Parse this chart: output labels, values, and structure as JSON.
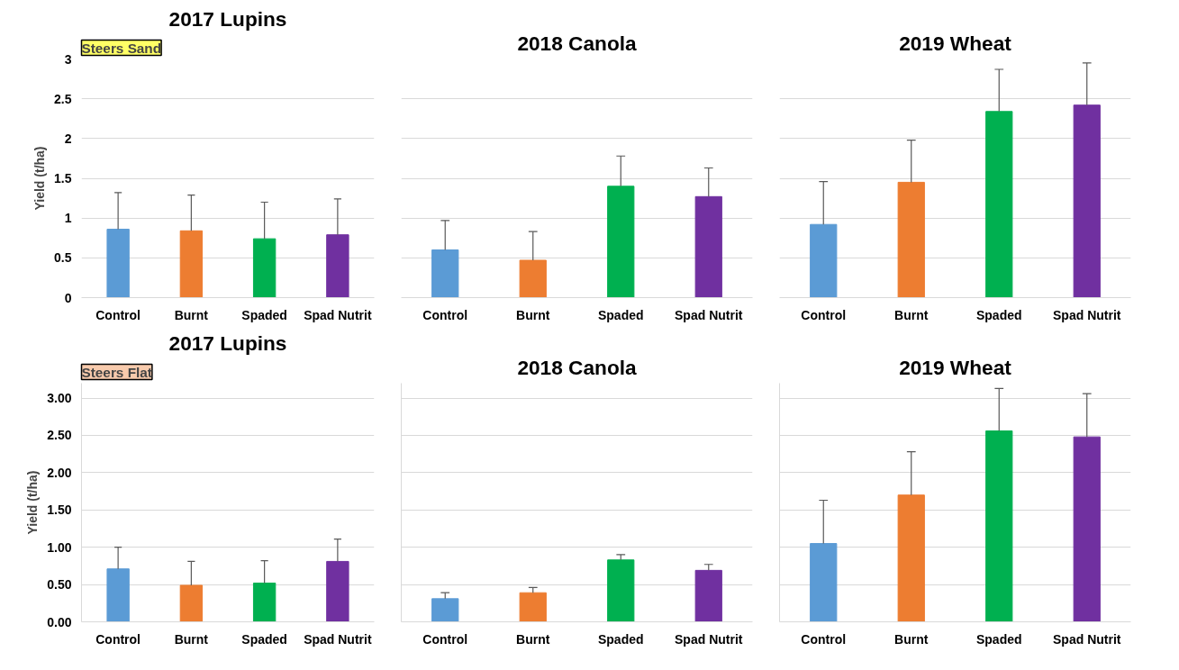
{
  "chart_data": [
    {
      "type": "bar",
      "title": "2017 Lupins",
      "ylabel": "Yield (t/ha)",
      "annotations": [
        "Steers Sand"
      ],
      "categories": [
        "Control",
        "Burnt",
        "Spaded",
        "Spad Nutrit"
      ],
      "values": [
        0.86,
        0.84,
        0.74,
        0.79
      ],
      "colors": [
        "#5b9bd5",
        "#ed7d31",
        "#00b050",
        "#7030a0"
      ],
      "errors": [
        [
          0.86,
          1.32
        ],
        [
          0.84,
          1.29
        ],
        [
          0.74,
          1.2
        ],
        [
          0.79,
          1.24
        ]
      ],
      "ylim": [
        0,
        3
      ],
      "yticks": [
        0,
        0.5,
        1,
        1.5,
        2,
        2.5,
        3
      ],
      "grid": "y"
    },
    {
      "type": "bar",
      "title": "2018 Canola",
      "categories": [
        "Control",
        "Burnt",
        "Spaded",
        "Spad Nutrit"
      ],
      "values": [
        0.6,
        0.47,
        1.4,
        1.27
      ],
      "colors": [
        "#5b9bd5",
        "#ed7d31",
        "#00b050",
        "#7030a0"
      ],
      "errors": [
        [
          0.6,
          0.97
        ],
        [
          0.47,
          0.83
        ],
        [
          1.4,
          1.78
        ],
        [
          1.27,
          1.63
        ]
      ],
      "ylim": [
        0,
        3
      ],
      "yticks": [
        0,
        0.5,
        1,
        1.5,
        2,
        2.5,
        3
      ],
      "tick_labels": "x",
      "grid": "y"
    },
    {
      "type": "bar",
      "title": "2019 Wheat",
      "categories": [
        "Control",
        "Burnt",
        "Spaded",
        "Spad Nutrit"
      ],
      "values": [
        0.92,
        1.45,
        2.34,
        2.42
      ],
      "colors": [
        "#5b9bd5",
        "#ed7d31",
        "#00b050",
        "#7030a0"
      ],
      "errors": [
        [
          0.92,
          1.46
        ],
        [
          1.45,
          1.98
        ],
        [
          2.34,
          2.87
        ],
        [
          2.42,
          2.95
        ]
      ],
      "ylim": [
        0,
        3
      ],
      "yticks": [
        0,
        0.5,
        1,
        1.5,
        2,
        2.5,
        3
      ],
      "tick_labels": "x",
      "grid": "y"
    },
    {
      "type": "bar",
      "title": "2017 Lupins",
      "ylabel": "Yield (t/ha)",
      "annotations": [
        "Steers Flat"
      ],
      "categories": [
        "Control",
        "Burnt",
        "Spaded",
        "Spad Nutrit"
      ],
      "values": [
        0.71,
        0.49,
        0.52,
        0.81
      ],
      "colors": [
        "#5b9bd5",
        "#ed7d31",
        "#00b050",
        "#7030a0"
      ],
      "errors": [
        [
          0.71,
          1.0
        ],
        [
          0.49,
          0.81
        ],
        [
          0.52,
          0.82
        ],
        [
          0.81,
          1.11
        ]
      ],
      "ylim": [
        0,
        3.2
      ],
      "yticks": [
        {
          "value": 0,
          "label": "0.00"
        },
        {
          "value": 0.5,
          "label": "0.50"
        },
        {
          "value": 1,
          "label": "1.00"
        },
        {
          "value": 1.5,
          "label": "1.50"
        },
        {
          "value": 2,
          "label": "2.00"
        },
        {
          "value": 2.5,
          "label": "2.50"
        },
        {
          "value": 3,
          "label": "3.00"
        }
      ],
      "grid": "y"
    },
    {
      "type": "bar",
      "title": "2018 Canola",
      "categories": [
        "Control",
        "Burnt",
        "Spaded",
        "Spad Nutrit"
      ],
      "values": [
        0.31,
        0.39,
        0.83,
        0.69
      ],
      "colors": [
        "#5b9bd5",
        "#ed7d31",
        "#00b050",
        "#7030a0"
      ],
      "errors": [
        [
          0.31,
          0.39
        ],
        [
          0.39,
          0.46
        ],
        [
          0.83,
          0.9
        ],
        [
          0.69,
          0.77
        ]
      ],
      "ylim": [
        0,
        3.2
      ],
      "yticks": [
        0,
        0.5,
        1,
        1.5,
        2,
        2.5,
        3
      ],
      "tick_labels": "x",
      "grid": "y"
    },
    {
      "type": "bar",
      "title": "2019 Wheat",
      "categories": [
        "Control",
        "Burnt",
        "Spaded",
        "Spad Nutrit"
      ],
      "values": [
        1.05,
        1.7,
        2.56,
        2.48
      ],
      "colors": [
        "#5b9bd5",
        "#ed7d31",
        "#00b050",
        "#7030a0"
      ],
      "errors": [
        [
          1.05,
          1.63
        ],
        [
          1.7,
          2.28
        ],
        [
          2.56,
          3.13
        ],
        [
          2.48,
          3.06
        ]
      ],
      "ylim": [
        0,
        3.2
      ],
      "yticks": [
        0,
        0.5,
        1,
        1.5,
        2,
        2.5,
        3
      ],
      "tick_labels": "x",
      "grid": "y"
    }
  ]
}
